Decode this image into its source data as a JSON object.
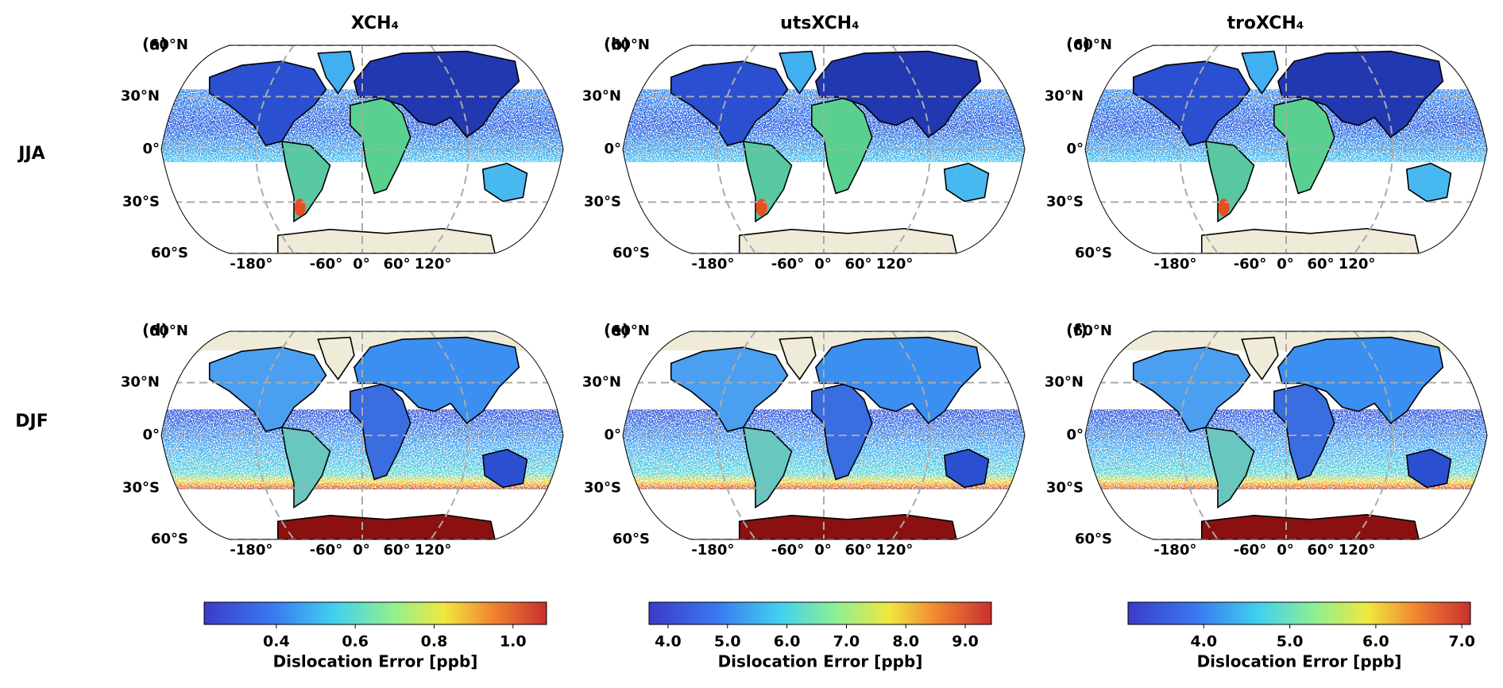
{
  "column_titles": [
    "XCH₄",
    "utsXCH₄",
    "troXCH₄"
  ],
  "row_labels": [
    "JJA",
    "DJF"
  ],
  "panel_labels": [
    "(a)",
    "(b)",
    "(c)",
    "(d)",
    "(e)",
    "(f)"
  ],
  "lat_labels": [
    "60°N",
    "30°N",
    "0°",
    "30°S",
    "60°S"
  ],
  "lon_labels": [
    "-180°",
    "-60°",
    "0°",
    "60°",
    "120°"
  ],
  "colorbars": [
    {
      "label": "Dislocation Error [ppb]",
      "lim": [
        0.217,
        1.085
      ],
      "ticks": [
        0.4,
        0.6,
        0.8,
        {
          "value": 1,
          "label": "1.0"
        }
      ]
    },
    {
      "label": "Dislocation Error [ppb]",
      "lim": [
        3.68,
        9.44
      ],
      "ticks": [
        {
          "value": 4,
          "label": "4.0"
        },
        {
          "value": 5,
          "label": "5.0"
        },
        {
          "value": 6,
          "label": "6.0"
        },
        {
          "value": 7,
          "label": "7.0"
        },
        {
          "value": 8,
          "label": "8.0"
        },
        {
          "value": 9,
          "label": "9.0"
        }
      ]
    },
    {
      "label": "Dislocation Error [ppb]",
      "lim": [
        3.12,
        7.1
      ],
      "ticks": [
        {
          "value": 4,
          "label": "4.0"
        },
        {
          "value": 5,
          "label": "5.0"
        },
        {
          "value": 6,
          "label": "6.0"
        },
        {
          "value": 7,
          "label": "7.0"
        }
      ]
    }
  ]
}
